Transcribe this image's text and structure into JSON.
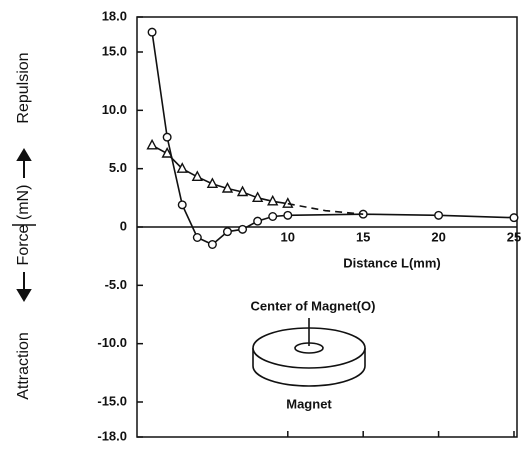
{
  "chart_data": {
    "type": "line",
    "y_label_top": "Repulsion",
    "y_label": "Force (mN)",
    "y_label_bottom": "Attraction",
    "x_label": "Distance L(mm)",
    "annotations": [
      "Center of Magnet(O)",
      "Magnet"
    ],
    "xlim": [
      0,
      25.2
    ],
    "xticks": [
      10,
      15,
      20,
      25
    ],
    "ylim": [
      -18,
      18
    ],
    "yticks": [
      {
        "value": 18,
        "label": "18.0"
      },
      {
        "value": 15,
        "label": "15.0"
      },
      {
        "value": 10,
        "label": "10.0"
      },
      {
        "value": 5,
        "label": "5.0"
      },
      0,
      {
        "value": -5,
        "label": "-5.0"
      },
      {
        "value": -10,
        "label": "-10.0"
      },
      {
        "value": -15,
        "label": "-15.0"
      },
      {
        "value": -18,
        "label": "-18.0"
      }
    ],
    "series": [
      {
        "color": "#111111",
        "marker": "circle",
        "dash": false,
        "x": [
          1,
          2,
          3,
          4,
          5,
          6,
          7,
          8,
          9,
          10,
          15,
          20,
          25
        ],
        "values": [
          16.7,
          7.7,
          1.9,
          -0.9,
          -1.5,
          -0.4,
          -0.2,
          0.5,
          0.9,
          1.0,
          1.1,
          1.0,
          0.8
        ]
      },
      {
        "color": "#111111",
        "marker": "triangle",
        "dash": false,
        "x": [
          1,
          2,
          3,
          4,
          5,
          6,
          7,
          8,
          9,
          10
        ],
        "values": [
          7.0,
          6.3,
          5.0,
          4.3,
          3.7,
          3.3,
          3.0,
          2.5,
          2.2,
          2.0
        ]
      },
      {
        "color": "#111111",
        "marker": "none",
        "dash": true,
        "x": [
          10,
          12.5,
          15
        ],
        "values": [
          2.0,
          1.4,
          1.1
        ]
      }
    ]
  }
}
